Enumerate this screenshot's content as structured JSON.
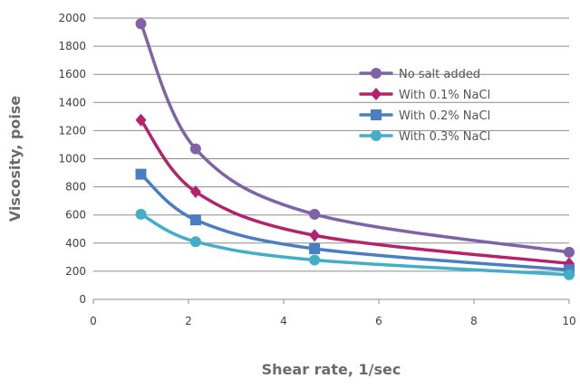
{
  "chart_data": {
    "type": "line",
    "smooth": true,
    "xlabel": "Shear rate, 1/sec",
    "ylabel": "Viscosity, poise",
    "xlim": [
      0,
      10
    ],
    "ylim": [
      0,
      2000
    ],
    "xticks": [
      0,
      2,
      4,
      6,
      8,
      10
    ],
    "yticks": [
      0,
      200,
      400,
      600,
      800,
      1000,
      1200,
      1400,
      1600,
      1800,
      2000
    ],
    "grid": "horizontal",
    "legend_position": "right, inside plot",
    "series": [
      {
        "name": "No salt added",
        "color": "#7f63a6",
        "marker": "circle",
        "x": [
          1,
          2.15,
          4.65,
          10
        ],
        "y": [
          1960,
          1070,
          605,
          335
        ]
      },
      {
        "name": "With 0.1% NaCl",
        "color": "#b5226b",
        "marker": "diamond",
        "x": [
          1,
          2.15,
          4.65,
          10
        ],
        "y": [
          1275,
          765,
          455,
          255
        ]
      },
      {
        "name": "With 0.2% NaCl",
        "color": "#4a7ec2",
        "marker": "square",
        "x": [
          1,
          2.15,
          4.65,
          10
        ],
        "y": [
          890,
          565,
          360,
          210
        ]
      },
      {
        "name": "With 0.3% NaCl",
        "color": "#42aec9",
        "marker": "circle",
        "x": [
          1,
          2.15,
          4.65,
          10
        ],
        "y": [
          605,
          410,
          280,
          175
        ]
      }
    ]
  }
}
